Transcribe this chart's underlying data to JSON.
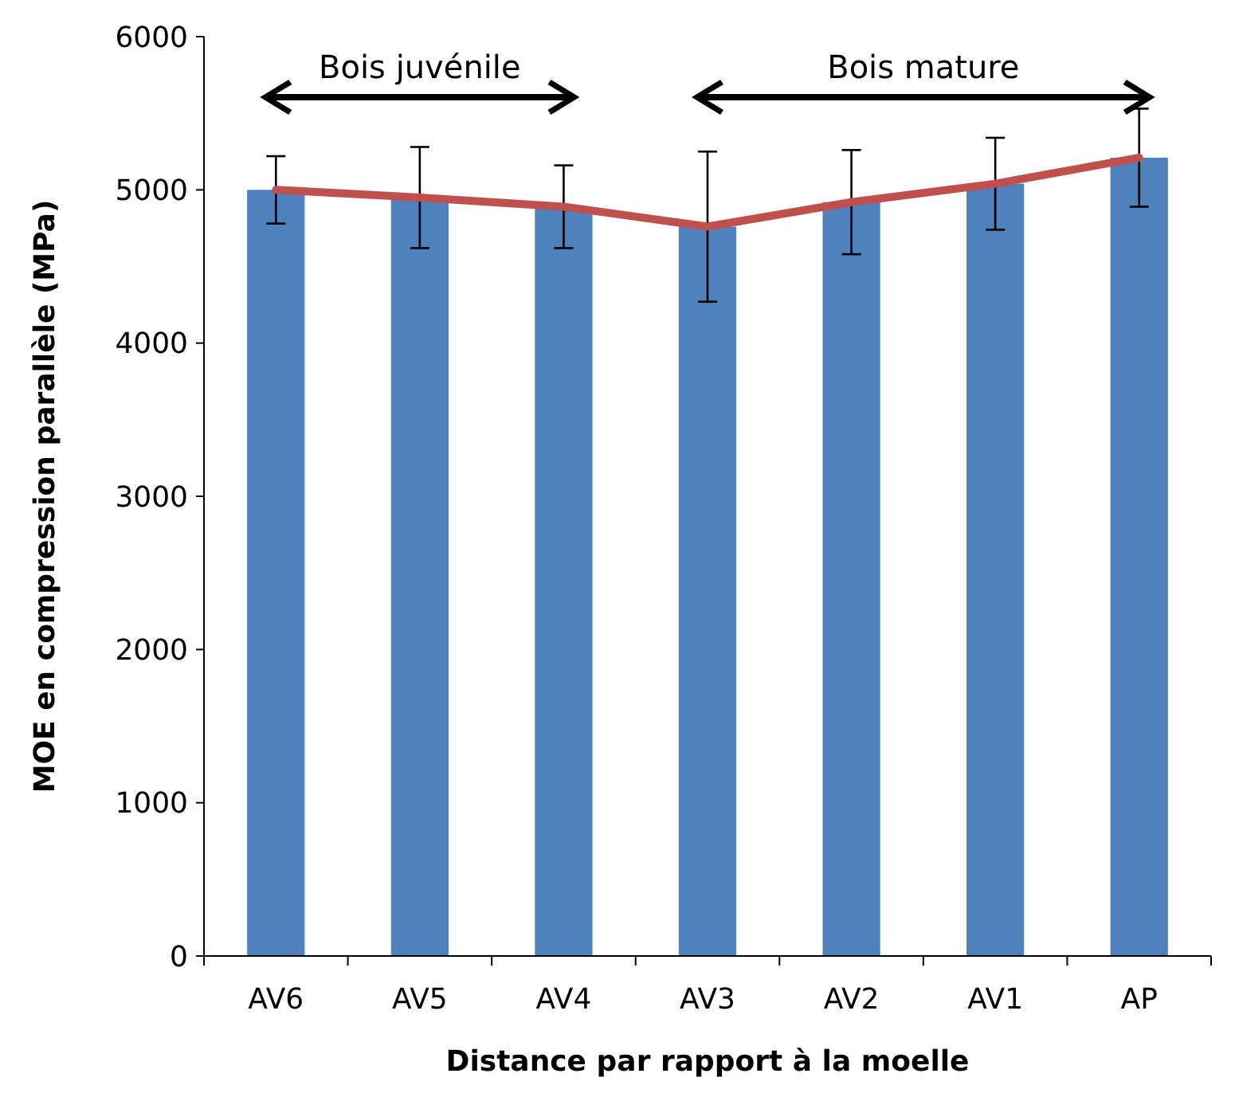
{
  "chart_data": {
    "type": "bar",
    "xlabel": "Distance par rapport à la moelle",
    "ylabel": "MOE en compression parallèle (MPa)",
    "categories": [
      "AV6",
      "AV5",
      "AV4",
      "AV3",
      "AV2",
      "AV1",
      "AP"
    ],
    "ylim": [
      0,
      6000
    ],
    "yticks": [
      0,
      1000,
      2000,
      3000,
      4000,
      5000,
      6000
    ],
    "grid": false,
    "series": [
      {
        "color": "#4f81bd",
        "values": [
          5000,
          4950,
          4890,
          4760,
          4920,
          5040,
          5210
        ],
        "errors": [
          220,
          330,
          270,
          490,
          340,
          300,
          320
        ]
      },
      {
        "type": "line",
        "color": "#c0504d",
        "values": [
          5000,
          4950,
          4890,
          4760,
          4920,
          5040,
          5210
        ]
      }
    ],
    "annotations": [
      "Bois juvénile",
      "Bois mature"
    ]
  }
}
